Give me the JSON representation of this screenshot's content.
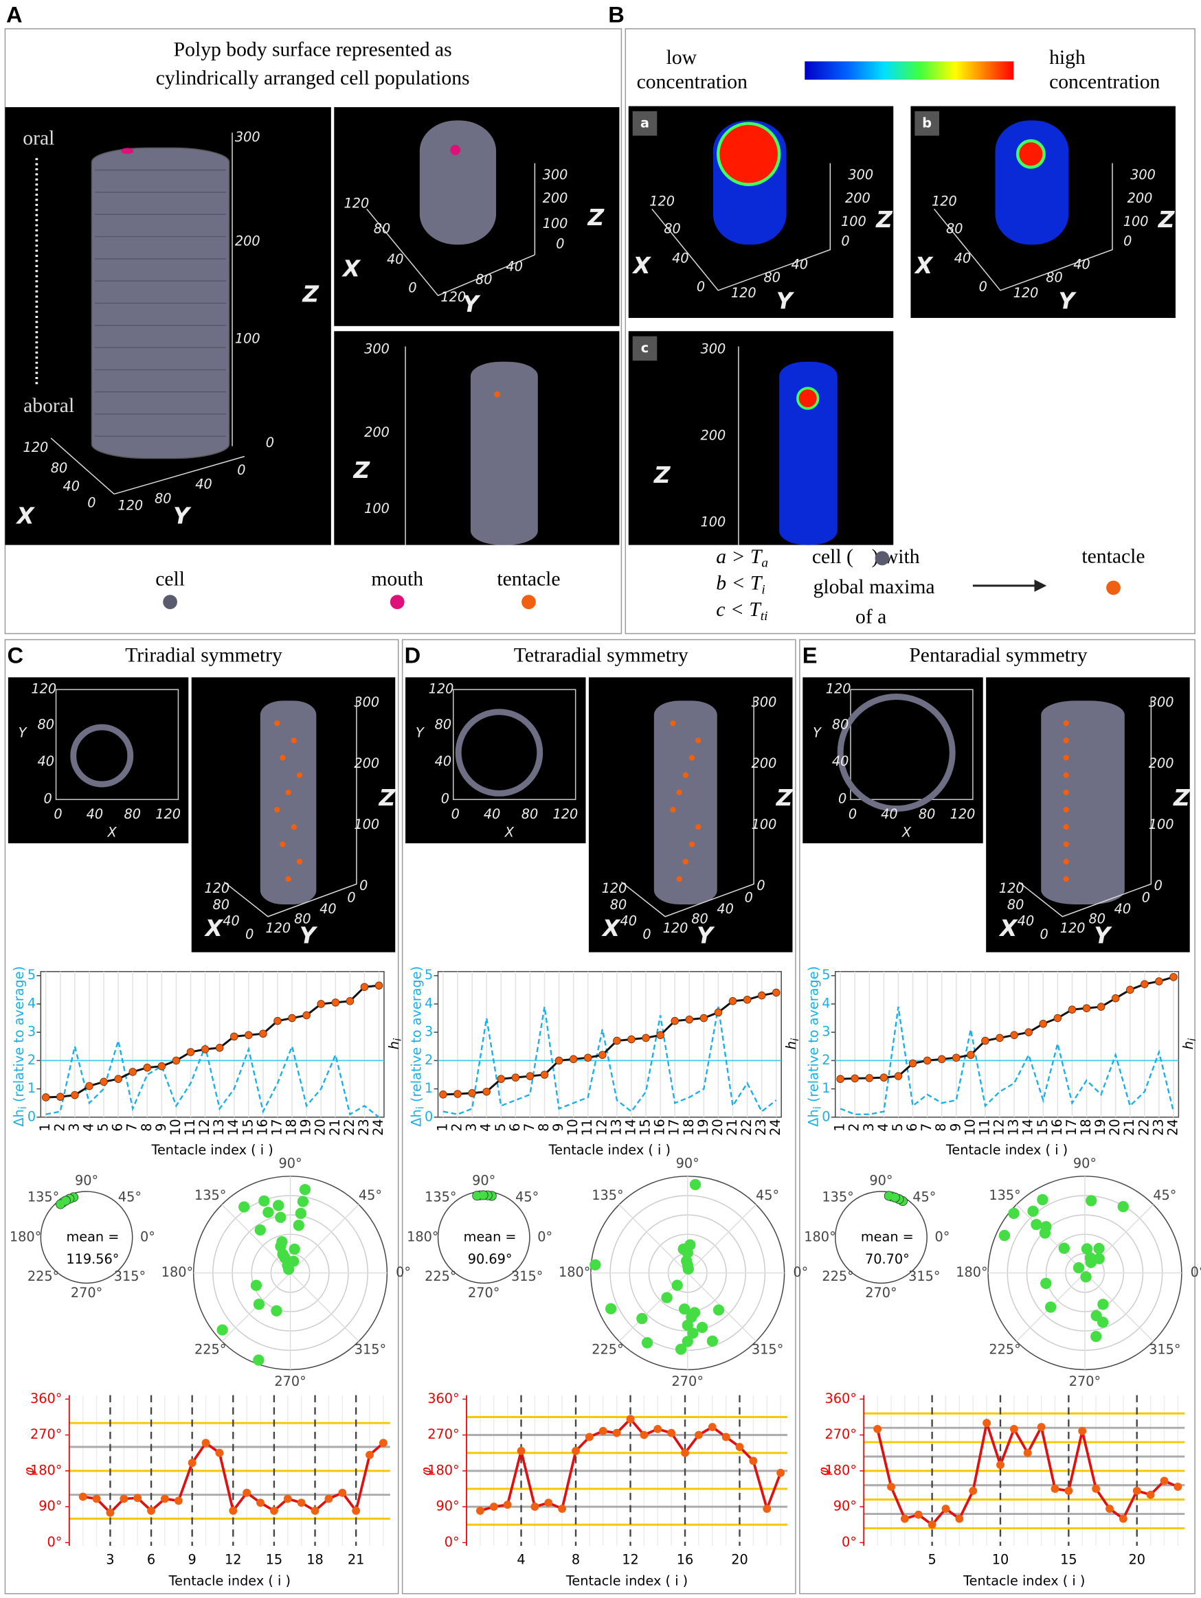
{
  "panel_a": {
    "label": "A",
    "title": [
      "Polyp body surface represented as",
      "cylindrically arranged cell populations"
    ],
    "oral": "oral",
    "aboral": "aboral",
    "views": [
      [
        "300",
        "200",
        "100",
        "0",
        "Z",
        "120",
        "80",
        "40",
        "0",
        "X",
        "120",
        "80",
        "40",
        "0",
        "Y"
      ],
      [
        "300",
        "200",
        "100",
        "0",
        "Z",
        "120",
        "80",
        "40",
        "0",
        "X",
        "120",
        "80",
        "40",
        "Y"
      ],
      [
        "300",
        "200",
        "100",
        "Z"
      ]
    ],
    "legend": [
      "cell",
      "mouth",
      "tentacle"
    ]
  },
  "panel_b": {
    "label": "B",
    "low": [
      "low",
      "concentration"
    ],
    "high": [
      "high",
      "concentration"
    ],
    "views": [
      {
        "tag": "a",
        "labels": [
          "300",
          "200",
          "100",
          "0",
          "Z",
          "120",
          "80",
          "40",
          "0",
          "X",
          "120",
          "80",
          "40",
          "Y"
        ]
      },
      {
        "tag": "b",
        "labels": [
          "300",
          "200",
          "100",
          "0",
          "Z",
          "120",
          "80",
          "40",
          "0",
          "X",
          "120",
          "80",
          "40",
          "Y"
        ]
      },
      {
        "tag": "c",
        "labels": [
          "300",
          "200",
          "100",
          "Z"
        ]
      }
    ],
    "conditions": [
      [
        "a > T",
        "a"
      ],
      [
        "b < T",
        "i"
      ],
      [
        "c < T",
        "ti"
      ]
    ],
    "rule": [
      "cell (",
      "global maxima",
      "of a"
    ],
    "rule_with": ") with",
    "result": "tentacle"
  },
  "panels": [
    {
      "label": "C",
      "title": "Triradial symmetry",
      "xy_labels": [
        "120",
        "80",
        "40",
        "0",
        "Y",
        "0",
        "40",
        "80",
        "120",
        "X"
      ],
      "body_labels": [
        "300",
        "200",
        "100",
        "0",
        "Z",
        "120",
        "80",
        "40",
        "0",
        "X",
        "120",
        "80",
        "40",
        "0",
        "Y"
      ],
      "dh_chart": {
        "ylabel": "Δh",
        "ylabel_sub": "i",
        "ylabel_rest": " (relative to average)",
        "y2label": "h",
        "y2label_sub": "i",
        "xlabel": "Tentacle index ( i )",
        "categories": [
          "1",
          "2",
          "3",
          "4",
          "5",
          "6",
          "7",
          "8",
          "9",
          "10",
          "11",
          "12",
          "13",
          "14",
          "15",
          "16",
          "17",
          "18",
          "19",
          "20",
          "21",
          "22",
          "23",
          "24"
        ],
        "ylim": [
          0,
          5
        ],
        "yticks": [
          0,
          1,
          2,
          3,
          4,
          5
        ],
        "threshold": 2,
        "h": [
          0.7,
          0.72,
          0.78,
          1.1,
          1.25,
          1.35,
          1.6,
          1.75,
          1.8,
          2.0,
          2.3,
          2.4,
          2.45,
          2.85,
          2.9,
          2.95,
          3.4,
          3.5,
          3.6,
          4.0,
          4.05,
          4.1,
          4.6,
          4.65
        ],
        "dh": [
          0.1,
          0.2,
          2.5,
          0.5,
          1.0,
          2.7,
          0.3,
          1.5,
          1.8,
          0.4,
          1.2,
          2.5,
          0.3,
          1.0,
          2.4,
          0.2,
          1.2,
          2.5,
          0.4,
          1.0,
          2.2,
          0.1,
          0.4,
          0
        ]
      },
      "polar_small": {
        "angle_labels": [
          "0°",
          "45°",
          "90°",
          "135°",
          "180°",
          "225°",
          "270°",
          "315°"
        ],
        "mean_label": "mean =",
        "mean": {
          "value": 119.56,
          "label": "119.56°"
        }
      },
      "polar_big": {
        "angle_labels": [
          "0°",
          "45°",
          "90°",
          "135°",
          "180°",
          "225°",
          "270°",
          "315°"
        ]
      },
      "phi_chart": {
        "ylabel": "φ",
        "xlabel": "Tentacle index ( i )",
        "xlim": [
          0,
          23.5
        ],
        "ylim": [
          -8,
          370
        ],
        "yticks": [
          {
            "value": 0,
            "label": "0°"
          },
          {
            "value": 90,
            "label": "90°"
          },
          {
            "value": 180,
            "label": "180°"
          },
          {
            "value": 270,
            "label": "270°"
          },
          {
            "value": 360,
            "label": "360°"
          }
        ],
        "xticks": [
          3,
          6,
          9,
          12,
          15,
          18,
          21
        ],
        "gray_lines": [
          120,
          240
        ],
        "yellow_lines": [
          60,
          180,
          300
        ],
        "values": [
          115,
          110,
          75,
          110,
          112,
          80,
          110,
          105,
          200,
          250,
          225,
          80,
          125,
          100,
          80,
          110,
          100,
          80,
          110,
          125,
          80,
          220,
          250
        ]
      }
    },
    {
      "label": "D",
      "title": "Tetraradial symmetry",
      "xy_labels": [
        "120",
        "80",
        "40",
        "0",
        "Y",
        "0",
        "40",
        "80",
        "120",
        "X"
      ],
      "body_labels": [
        "300",
        "200",
        "100",
        "0",
        "Z",
        "120",
        "80",
        "40",
        "0",
        "X",
        "120",
        "80",
        "40",
        "0",
        "Y"
      ],
      "dh_chart": {
        "ylabel": "Δh",
        "ylabel_sub": "i",
        "ylabel_rest": " (relative to average)",
        "y2label": "h",
        "y2label_sub": "i",
        "xlabel": "Tentacle index ( i )",
        "categories": [
          "1",
          "2",
          "3",
          "4",
          "5",
          "6",
          "7",
          "8",
          "9",
          "10",
          "11",
          "12",
          "13",
          "14",
          "15",
          "16",
          "17",
          "18",
          "19",
          "20",
          "21",
          "22",
          "23",
          "24"
        ],
        "ylim": [
          0,
          5
        ],
        "yticks": [
          0,
          1,
          2,
          3,
          4,
          5
        ],
        "threshold": 2,
        "h": [
          0.8,
          0.82,
          0.85,
          0.9,
          1.35,
          1.4,
          1.45,
          1.5,
          2.0,
          2.05,
          2.1,
          2.2,
          2.7,
          2.75,
          2.8,
          2.9,
          3.4,
          3.45,
          3.5,
          3.7,
          4.1,
          4.15,
          4.3,
          4.4
        ],
        "dh": [
          0.2,
          0.1,
          0.3,
          3.5,
          0.4,
          0.6,
          0.8,
          3.9,
          0.3,
          0.5,
          0.7,
          3.1,
          0.6,
          0.2,
          0.9,
          3.6,
          0.5,
          0.7,
          1.0,
          3.9,
          0.4,
          1.2,
          0.2,
          0.6
        ]
      },
      "polar_small": {
        "angle_labels": [
          "0°",
          "45°",
          "90°",
          "135°",
          "180°",
          "225°",
          "270°",
          "315°"
        ],
        "mean_label": "mean =",
        "mean": {
          "value": 90.69,
          "label": "90.69°"
        }
      },
      "polar_big": {
        "angle_labels": [
          "0°",
          "45°",
          "90°",
          "135°",
          "180°",
          "225°",
          "270°",
          "315°"
        ]
      },
      "phi_chart": {
        "ylabel": "φ",
        "xlabel": "Tentacle index ( i )",
        "xlim": [
          0,
          23.5
        ],
        "ylim": [
          -8,
          370
        ],
        "yticks": [
          {
            "value": 0,
            "label": "0°"
          },
          {
            "value": 90,
            "label": "90°"
          },
          {
            "value": 180,
            "label": "180°"
          },
          {
            "value": 270,
            "label": "270°"
          },
          {
            "value": 360,
            "label": "360°"
          }
        ],
        "xticks": [
          4,
          8,
          12,
          16,
          20
        ],
        "gray_lines": [
          90,
          180,
          270
        ],
        "yellow_lines": [
          45,
          135,
          225,
          315
        ],
        "values": [
          80,
          90,
          95,
          230,
          90,
          100,
          85,
          230,
          265,
          280,
          275,
          310,
          270,
          285,
          275,
          225,
          270,
          290,
          265,
          240,
          205,
          85,
          175
        ]
      }
    },
    {
      "label": "E",
      "title": "Pentaradial symmetry",
      "xy_labels": [
        "120",
        "80",
        "40",
        "0",
        "Y",
        "0",
        "40",
        "80",
        "120",
        "X"
      ],
      "body_labels": [
        "300",
        "200",
        "100",
        "0",
        "Z",
        "120",
        "80",
        "40",
        "0",
        "X",
        "120",
        "80",
        "40",
        "0",
        "Y"
      ],
      "dh_chart": {
        "ylabel": "Δh",
        "ylabel_sub": "i",
        "ylabel_rest": " (relative to average)",
        "y2label": "h",
        "y2label_sub": "i",
        "xlabel": "Tentacle index ( i )",
        "categories": [
          "1",
          "2",
          "3",
          "4",
          "5",
          "6",
          "7",
          "8",
          "9",
          "10",
          "11",
          "12",
          "13",
          "14",
          "15",
          "16",
          "17",
          "18",
          "19",
          "20",
          "21",
          "22",
          "23",
          "24"
        ],
        "ylim": [
          0,
          5
        ],
        "yticks": [
          0,
          1,
          2,
          3,
          4,
          5
        ],
        "threshold": 2,
        "h": [
          1.35,
          1.37,
          1.38,
          1.4,
          1.45,
          1.9,
          2.0,
          2.05,
          2.1,
          2.2,
          2.7,
          2.8,
          2.9,
          3.0,
          3.3,
          3.5,
          3.8,
          3.85,
          3.9,
          4.2,
          4.5,
          4.7,
          4.8,
          4.95
        ],
        "dh": [
          0.3,
          0.1,
          0.1,
          0.2,
          3.9,
          0.4,
          0.8,
          0.5,
          0.6,
          3.1,
          0.4,
          0.9,
          1.2,
          2.2,
          0.6,
          2.6,
          0.5,
          1.3,
          0.8,
          2.2,
          0.4,
          0.9,
          2.3,
          0.2
        ]
      },
      "polar_small": {
        "angle_labels": [
          "0°",
          "45°",
          "90°",
          "135°",
          "180°",
          "225°",
          "270°",
          "315°"
        ],
        "mean_label": "mean =",
        "mean": {
          "value": 70.7,
          "label": "70.70°"
        }
      },
      "polar_big": {
        "angle_labels": [
          "0°",
          "45°",
          "90°",
          "135°",
          "180°",
          "225°",
          "270°",
          "315°"
        ]
      },
      "phi_chart": {
        "ylabel": "φ",
        "xlabel": "Tentacle index ( i )",
        "xlim": [
          0,
          23.5
        ],
        "ylim": [
          -8,
          370
        ],
        "yticks": [
          {
            "value": 0,
            "label": "0°"
          },
          {
            "value": 90,
            "label": "90°"
          },
          {
            "value": 180,
            "label": "180°"
          },
          {
            "value": 270,
            "label": "270°"
          },
          {
            "value": 360,
            "label": "360°"
          }
        ],
        "xticks": [
          5,
          10,
          15,
          20
        ],
        "gray_lines": [
          72,
          144,
          216,
          288
        ],
        "yellow_lines": [
          36,
          108,
          180,
          252,
          324
        ],
        "values": [
          285,
          140,
          60,
          70,
          45,
          85,
          60,
          130,
          300,
          195,
          285,
          225,
          290,
          135,
          130,
          280,
          135,
          85,
          60,
          130,
          120,
          155,
          140
        ]
      }
    }
  ]
}
